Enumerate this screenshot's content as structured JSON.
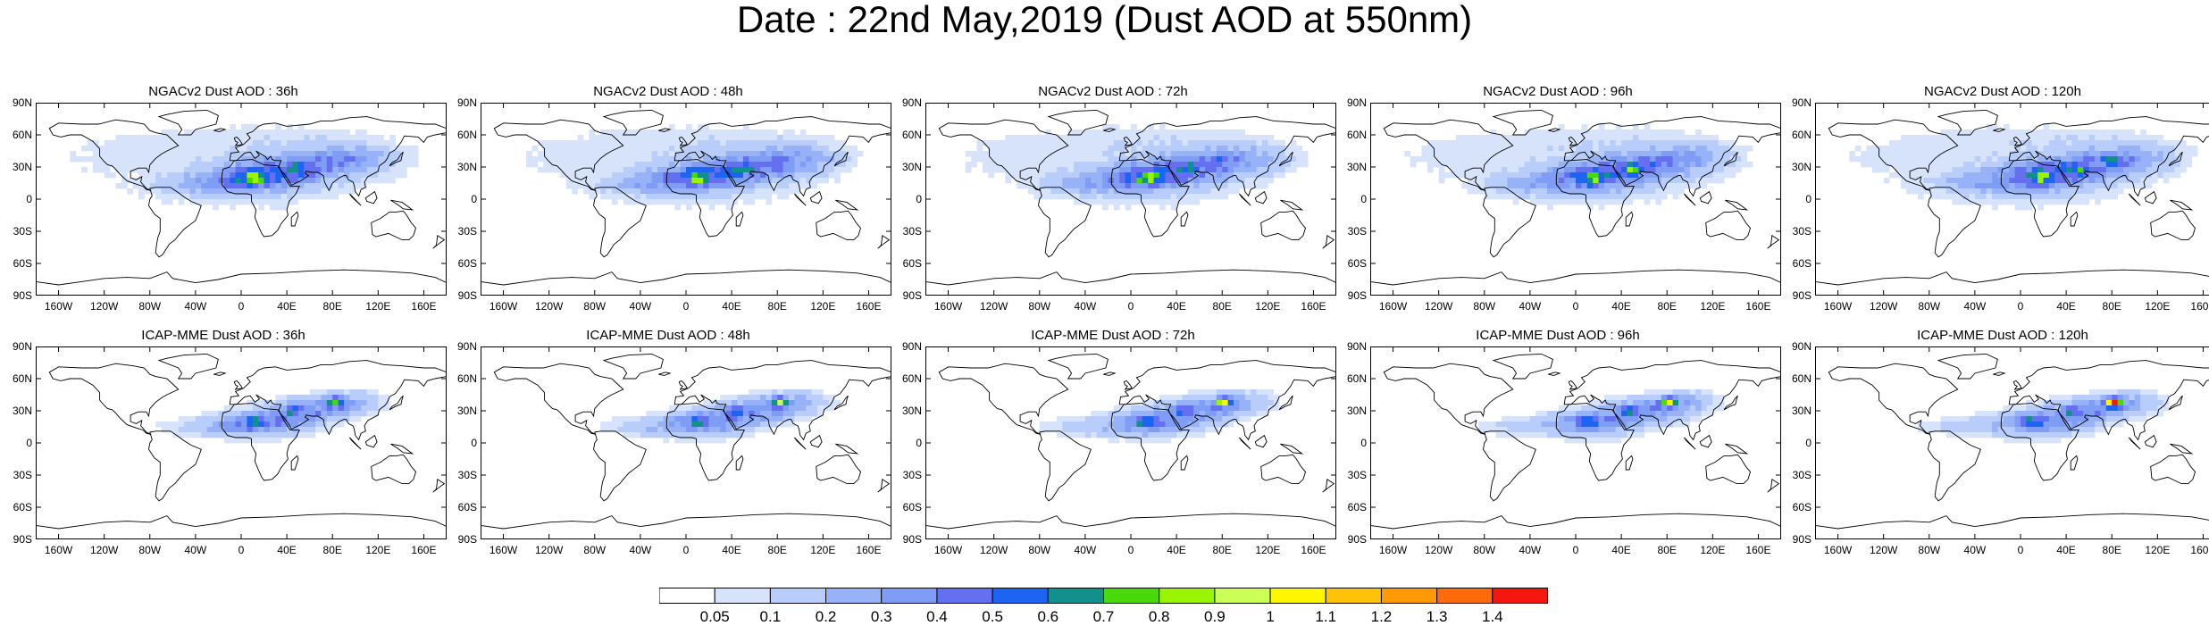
{
  "title": "Date : 22nd May,2019 (Dust AOD at 550nm)",
  "panels": [
    {
      "title": "NGACv2 Dust AOD : 36h",
      "row": 0,
      "col": 0,
      "model": "ngac",
      "lead": 36
    },
    {
      "title": "NGACv2 Dust AOD : 48h",
      "row": 0,
      "col": 1,
      "model": "ngac",
      "lead": 48
    },
    {
      "title": "NGACv2 Dust AOD : 72h",
      "row": 0,
      "col": 2,
      "model": "ngac",
      "lead": 72
    },
    {
      "title": "NGACv2 Dust AOD : 96h",
      "row": 0,
      "col": 3,
      "model": "ngac",
      "lead": 96
    },
    {
      "title": "NGACv2 Dust AOD : 120h",
      "row": 0,
      "col": 4,
      "model": "ngac",
      "lead": 120
    },
    {
      "title": "ICAP-MME Dust AOD : 36h",
      "row": 1,
      "col": 0,
      "model": "icap",
      "lead": 36
    },
    {
      "title": "ICAP-MME Dust AOD : 48h",
      "row": 1,
      "col": 1,
      "model": "icap",
      "lead": 48
    },
    {
      "title": "ICAP-MME Dust AOD : 72h",
      "row": 1,
      "col": 2,
      "model": "icap",
      "lead": 72
    },
    {
      "title": "ICAP-MME Dust AOD : 96h",
      "row": 1,
      "col": 3,
      "model": "icap",
      "lead": 96
    },
    {
      "title": "ICAP-MME Dust AOD : 120h",
      "row": 1,
      "col": 4,
      "model": "icap",
      "lead": 120
    }
  ],
  "lat_labels": [
    "90N",
    "60N",
    "30N",
    "0",
    "30S",
    "60S",
    "90S"
  ],
  "lon_labels": [
    "160W",
    "120W",
    "80W",
    "40W",
    "0",
    "40E",
    "80E",
    "120E",
    "160E"
  ],
  "lon_values": [
    -160,
    -120,
    -80,
    -40,
    0,
    40,
    80,
    120,
    160
  ],
  "lat_values": [
    90,
    60,
    30,
    0,
    -30,
    -60,
    -90
  ],
  "colorbar": {
    "labels": [
      "0.05",
      "0.1",
      "0.2",
      "0.3",
      "0.4",
      "0.5",
      "0.6",
      "0.7",
      "0.8",
      "0.9",
      "1",
      "1.1",
      "1.2",
      "1.3",
      "1.4"
    ],
    "colors": [
      "#ffffff",
      "#d7e3fb",
      "#b8cdf9",
      "#98b2f7",
      "#7f9df5",
      "#6470ef",
      "#1c64f2",
      "#11908c",
      "#48d90a",
      "#9af505",
      "#ccff55",
      "#fff700",
      "#ffc20a",
      "#ff9905",
      "#ff6a0a",
      "#f4160f"
    ]
  }
}
